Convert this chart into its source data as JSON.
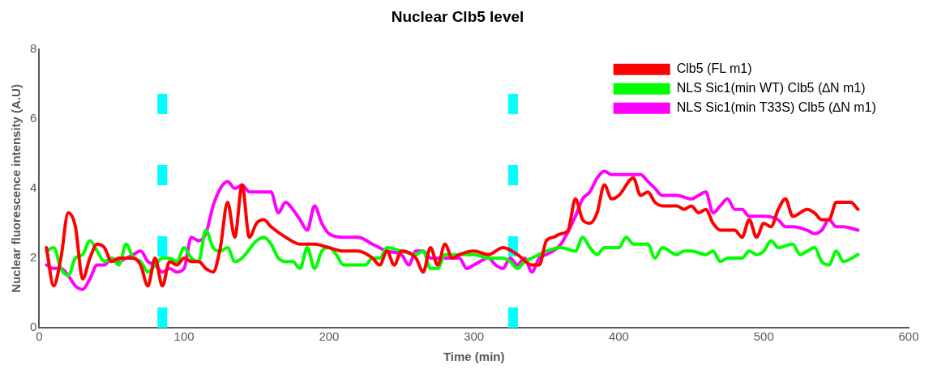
{
  "chart_data": {
    "type": "line",
    "title": "Nuclear Clb5 level",
    "xlabel": "Time (min)",
    "ylabel": "Nuclear fluorescence intensity (A.U)",
    "xlim": [
      0,
      600
    ],
    "xticks": [
      0,
      100,
      200,
      300,
      400,
      500,
      600
    ],
    "ylim": [
      0,
      8
    ],
    "yticks": [
      0,
      2,
      4,
      6,
      8
    ],
    "grid": false,
    "legend": "top right",
    "marker": "none",
    "line_style": "solid",
    "ref_lines": [
      {
        "axis": "x",
        "value": 85,
        "color": "#00ffff",
        "line_style": "dashed"
      },
      {
        "axis": "x",
        "value": 327,
        "color": "#00ffff",
        "line_style": "dashed"
      }
    ],
    "series": [
      {
        "name": "Clb5 (FL m1)",
        "color": "#ff0000",
        "x": [
          5,
          10,
          15,
          20,
          25,
          30,
          35,
          40,
          45,
          50,
          55,
          60,
          65,
          70,
          75,
          80,
          85,
          90,
          95,
          100,
          105,
          110,
          115,
          120,
          125,
          130,
          135,
          140,
          145,
          150,
          155,
          160,
          170,
          180,
          190,
          200,
          210,
          220,
          230,
          235,
          240,
          245,
          250,
          260,
          265,
          270,
          275,
          280,
          285,
          290,
          300,
          310,
          320,
          330,
          340,
          345,
          350,
          355,
          360,
          365,
          370,
          375,
          380,
          385,
          390,
          395,
          400,
          410,
          415,
          420,
          425,
          430,
          440,
          445,
          450,
          455,
          460,
          465,
          470,
          480,
          485,
          490,
          495,
          500,
          505,
          510,
          515,
          520,
          530,
          535,
          540,
          545,
          550,
          560,
          565
        ],
        "values": [
          2.3,
          1.2,
          2.0,
          3.3,
          2.9,
          1.4,
          2.0,
          2.4,
          2.3,
          1.9,
          2.0,
          2.0,
          2.0,
          1.8,
          1.2,
          2.0,
          1.2,
          1.9,
          1.8,
          2.0,
          1.9,
          1.9,
          1.7,
          1.6,
          2.3,
          3.6,
          2.6,
          4.1,
          2.6,
          3.0,
          3.1,
          2.9,
          2.6,
          2.4,
          2.4,
          2.3,
          2.2,
          2.2,
          2.0,
          1.8,
          2.2,
          1.8,
          2.2,
          2.0,
          1.6,
          2.3,
          1.8,
          2.4,
          2.0,
          2.1,
          2.2,
          2.1,
          2.3,
          2.1,
          1.8,
          1.8,
          2.5,
          2.6,
          2.7,
          2.8,
          3.7,
          3.1,
          3.0,
          3.3,
          4.1,
          3.7,
          3.8,
          4.3,
          3.8,
          3.9,
          3.6,
          3.5,
          3.5,
          3.4,
          3.5,
          3.3,
          3.4,
          3.0,
          2.8,
          2.8,
          2.6,
          3.1,
          2.6,
          3.0,
          2.9,
          3.4,
          3.7,
          3.2,
          3.4,
          3.3,
          3.1,
          3.1,
          3.6,
          3.6,
          3.4
        ]
      },
      {
        "name": "NLS Sic1(min WT) Clb5 (∆N m1)",
        "color": "#00ff00",
        "x": [
          5,
          10,
          15,
          20,
          25,
          30,
          35,
          40,
          45,
          50,
          55,
          60,
          65,
          70,
          75,
          80,
          85,
          90,
          95,
          100,
          105,
          110,
          115,
          120,
          125,
          130,
          135,
          140,
          150,
          155,
          160,
          165,
          170,
          175,
          180,
          185,
          190,
          195,
          200,
          205,
          210,
          220,
          225,
          230,
          235,
          240,
          250,
          260,
          265,
          270,
          275,
          280,
          290,
          300,
          310,
          320,
          325,
          330,
          335,
          340,
          350,
          360,
          370,
          375,
          380,
          385,
          390,
          400,
          405,
          410,
          420,
          425,
          430,
          440,
          445,
          450,
          460,
          465,
          470,
          475,
          480,
          485,
          490,
          495,
          500,
          505,
          510,
          520,
          525,
          530,
          535,
          540,
          545,
          550,
          555,
          565
        ],
        "values": [
          2.2,
          2.3,
          1.7,
          1.5,
          2.0,
          2.1,
          2.5,
          2.2,
          1.9,
          2.0,
          1.8,
          2.4,
          2.0,
          1.9,
          1.6,
          1.8,
          2.0,
          2.0,
          1.9,
          2.3,
          2.0,
          1.9,
          2.8,
          2.3,
          2.2,
          2.3,
          1.9,
          2.0,
          2.5,
          2.6,
          2.4,
          2.0,
          1.9,
          1.9,
          1.7,
          2.3,
          1.7,
          2.2,
          2.3,
          2.1,
          1.8,
          1.8,
          1.8,
          2.0,
          2.0,
          2.3,
          2.2,
          2.1,
          2.2,
          1.7,
          1.7,
          2.1,
          2.1,
          2.1,
          2.0,
          2.0,
          1.9,
          1.7,
          1.9,
          2.0,
          2.2,
          2.3,
          2.2,
          2.6,
          2.3,
          2.1,
          2.3,
          2.3,
          2.6,
          2.4,
          2.4,
          2.0,
          2.3,
          2.1,
          2.2,
          2.2,
          2.1,
          2.2,
          1.9,
          2.0,
          2.0,
          2.0,
          2.2,
          2.1,
          2.2,
          2.5,
          2.3,
          2.4,
          2.1,
          2.2,
          2.3,
          1.9,
          1.8,
          2.2,
          1.9,
          2.1
        ]
      },
      {
        "name": "NLS Sic1(min T33S) Clb5 (∆N m1)",
        "color": "#ff00ff",
        "x": [
          5,
          10,
          15,
          20,
          25,
          30,
          35,
          40,
          45,
          50,
          55,
          60,
          65,
          70,
          75,
          80,
          85,
          90,
          95,
          100,
          105,
          110,
          115,
          120,
          125,
          130,
          135,
          140,
          145,
          150,
          155,
          160,
          165,
          170,
          175,
          180,
          185,
          190,
          195,
          200,
          210,
          220,
          230,
          240,
          250,
          255,
          260,
          265,
          270,
          280,
          285,
          290,
          295,
          300,
          310,
          315,
          320,
          325,
          330,
          335,
          340,
          345,
          350,
          360,
          370,
          375,
          380,
          385,
          390,
          395,
          400,
          405,
          410,
          415,
          420,
          425,
          430,
          440,
          450,
          455,
          460,
          465,
          470,
          475,
          480,
          485,
          490,
          495,
          500,
          510,
          515,
          520,
          530,
          535,
          540,
          545,
          550,
          555,
          565
        ],
        "values": [
          1.8,
          1.7,
          1.7,
          1.5,
          1.2,
          1.1,
          1.4,
          1.8,
          1.8,
          2.0,
          1.9,
          2.0,
          2.1,
          2.2,
          1.9,
          1.8,
          1.6,
          1.7,
          1.6,
          1.7,
          2.6,
          2.5,
          2.7,
          3.5,
          4.0,
          4.2,
          4.0,
          4.1,
          3.9,
          3.9,
          3.9,
          3.9,
          3.3,
          3.6,
          3.4,
          3.1,
          2.8,
          3.5,
          3.0,
          2.7,
          2.6,
          2.6,
          2.4,
          2.2,
          2.1,
          1.8,
          2.2,
          2.2,
          2.0,
          2.0,
          2.0,
          2.0,
          1.7,
          1.8,
          2.0,
          1.8,
          1.7,
          2.0,
          1.8,
          2.0,
          1.6,
          2.0,
          2.1,
          2.4,
          3.2,
          3.7,
          3.9,
          4.3,
          4.5,
          4.4,
          4.4,
          4.4,
          4.4,
          4.4,
          4.2,
          4.0,
          3.8,
          3.8,
          3.7,
          3.8,
          3.9,
          3.3,
          3.5,
          3.7,
          3.4,
          3.4,
          3.2,
          3.2,
          3.2,
          3.1,
          2.9,
          2.9,
          2.8,
          2.7,
          2.8,
          3.1,
          2.9,
          2.9,
          2.8
        ]
      }
    ]
  }
}
